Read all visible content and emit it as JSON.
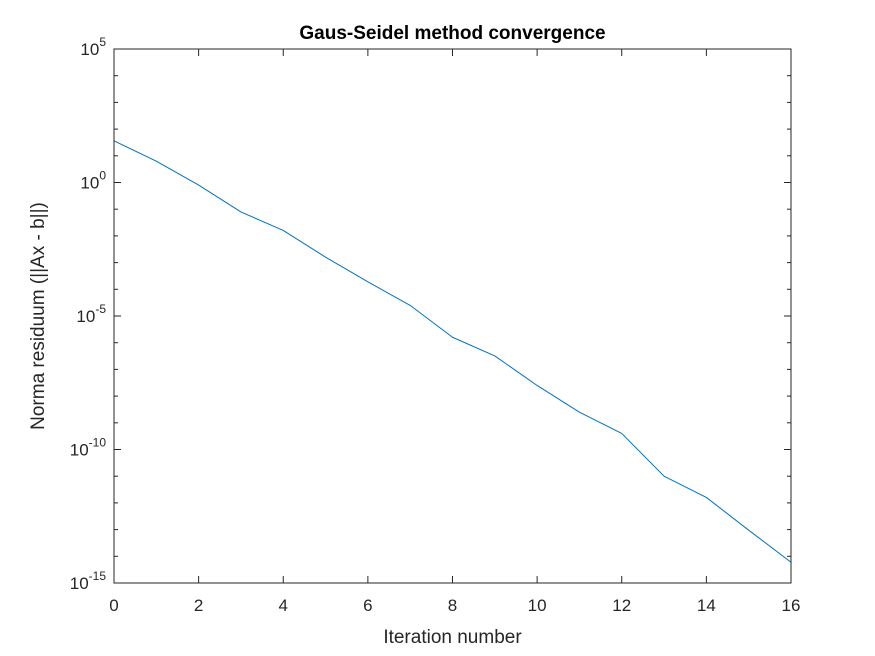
{
  "chart_data": {
    "type": "line",
    "title": "Gaus-Seidel method convergence",
    "xlabel": "Iteration number",
    "ylabel": "Norma residuum (||Ax - b||)",
    "xlim": [
      0,
      16
    ],
    "ylim": [
      1e-15,
      100000.0
    ],
    "y_scale": "log",
    "x_ticks": [
      0,
      2,
      4,
      6,
      8,
      10,
      12,
      14,
      16
    ],
    "y_ticks": [
      {
        "base": "10",
        "exp": "-15",
        "value": 1e-15
      },
      {
        "base": "10",
        "exp": "-10",
        "value": 1e-10
      },
      {
        "base": "10",
        "exp": "-5",
        "value": 1e-05
      },
      {
        "base": "10",
        "exp": "0",
        "value": 1
      },
      {
        "base": "10",
        "exp": "5",
        "value": 100000.0
      }
    ],
    "grid": false,
    "line_color": "#0072BD",
    "series": [
      {
        "x": [
          0,
          1,
          2,
          3,
          4,
          5,
          6,
          7,
          8,
          9,
          10,
          11,
          12,
          13,
          14,
          15,
          16
        ],
        "y": [
          36.3,
          6.3,
          0.8,
          0.079,
          0.016,
          0.0016,
          0.00019,
          2.5e-05,
          1.6e-06,
          3.2e-07,
          2.5e-08,
          2.5e-09,
          4e-10,
          1e-11,
          1.6e-12,
          9.5e-14,
          6e-15
        ]
      }
    ]
  }
}
